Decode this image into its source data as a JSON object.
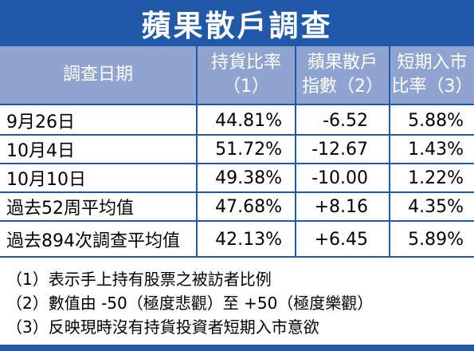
{
  "title": "蘋果散戶調查",
  "headers": {
    "date": "調查日期",
    "holding_line1": "持貨比率",
    "holding_line2": "（1）",
    "index_line1": "蘋果散戶",
    "index_line2": "指數（2）",
    "short_line1": "短期入市",
    "short_line2": "比率（3）"
  },
  "rows": [
    {
      "date": "9月26日",
      "holding": "44.81%",
      "index": "-6.52",
      "short": "5.88%"
    },
    {
      "date": "10月4日",
      "holding": "51.72%",
      "index": "-12.67",
      "short": "1.43%"
    },
    {
      "date": "10月10日",
      "holding": "49.38%",
      "index": "-10.00",
      "short": "1.22%"
    },
    {
      "date": "過去52周平均值",
      "holding": "47.68%",
      "index": "+8.16",
      "short": "4.35%"
    },
    {
      "date": "過去894次調查平均值",
      "holding": "42.13%",
      "index": "+6.45",
      "short": "5.89%"
    }
  ],
  "notes": [
    "（1）表示手上持有股票之被訪者比例",
    "（2）數值由 -50（極度悲觀）至 +50（極度樂觀）",
    "（3）反映現時沒有持貨投資者短期入市意欲"
  ],
  "colors": {
    "accent": "#1f59a8",
    "header_bg": "#8fa5cf"
  }
}
